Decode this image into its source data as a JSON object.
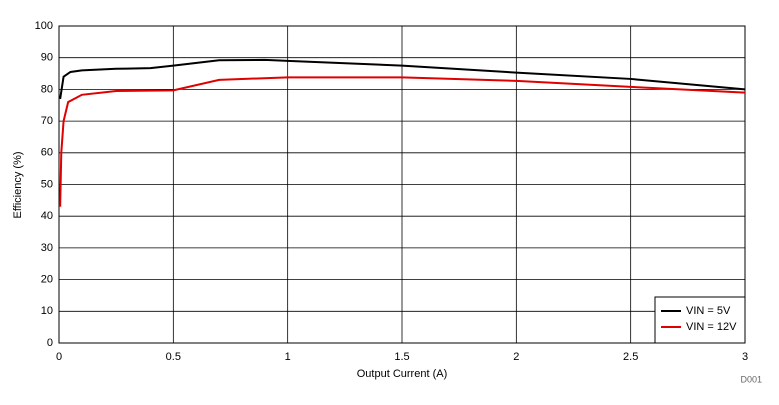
{
  "chart_data": {
    "type": "line",
    "x_label": "Output Current (A)",
    "y_label": "Efficiency (%)",
    "annotation": "D001",
    "xlim": [
      0,
      3
    ],
    "xticks": [
      0,
      0.5,
      1,
      1.5,
      2,
      2.5,
      3
    ],
    "ylim": [
      0,
      100
    ],
    "yticks": [
      0,
      10,
      20,
      30,
      40,
      50,
      60,
      70,
      80,
      90,
      100
    ],
    "grid": true,
    "legend": "lower right",
    "series": [
      {
        "name": "VIN = 5V",
        "color": "#000000",
        "x": [
          0.005,
          0.02,
          0.05,
          0.1,
          0.25,
          0.4,
          0.5,
          0.7,
          0.9,
          1.0,
          1.5,
          2.0,
          2.5,
          3.0
        ],
        "values": [
          77,
          84,
          85.5,
          86,
          86.5,
          86.7,
          87.5,
          89.2,
          89.3,
          89,
          87.5,
          85.3,
          83.3,
          80
        ]
      },
      {
        "name": "VIN = 12V",
        "color": "#e00000",
        "x": [
          0.005,
          0.01,
          0.02,
          0.04,
          0.1,
          0.25,
          0.5,
          0.7,
          1.0,
          1.5,
          2.0,
          2.5,
          3.0
        ],
        "values": [
          43,
          60,
          70,
          76,
          78.3,
          79.5,
          79.7,
          83,
          83.8,
          83.8,
          82.7,
          80.8,
          79
        ]
      }
    ]
  }
}
